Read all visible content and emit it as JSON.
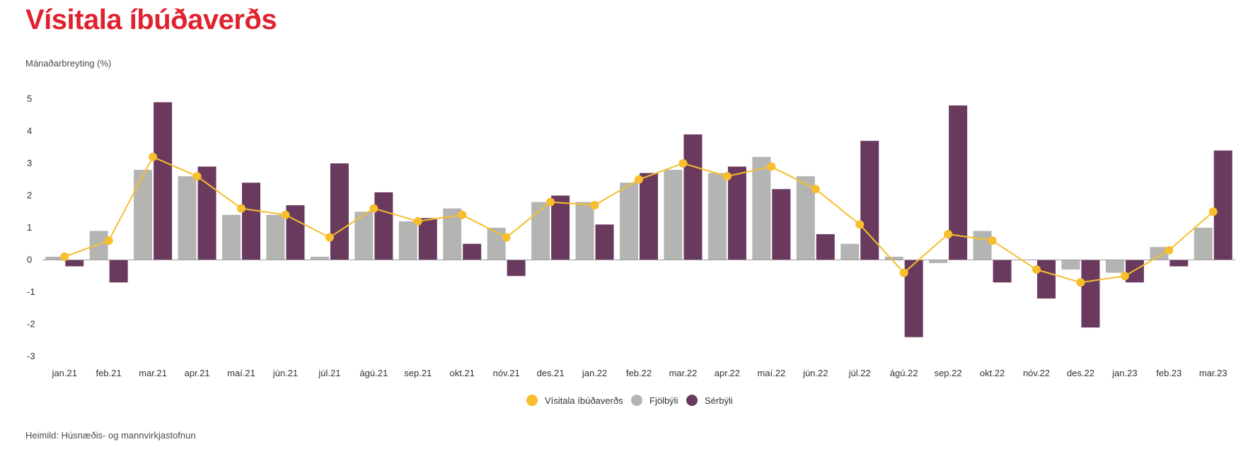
{
  "title": "Vísitala íbúðaverðs",
  "source": "Heimild: Húsnæðis- og mannvirkjastofnun",
  "colors": {
    "title": "#e0222f",
    "index": "#f7be2d",
    "apartments": "#b4b5b3",
    "houses": "#6a3a5e"
  },
  "chart_data": {
    "type": "bar",
    "title": "Vísitala íbúðaverðs",
    "ylabel": "Mánaðarbreyting (%)",
    "xlabel": "",
    "ylim": [
      -3,
      5
    ],
    "yticks": [
      5,
      4,
      3,
      2,
      1,
      0,
      -1,
      -2,
      -3
    ],
    "grid": false,
    "legend_position": "bottom-center",
    "categories": [
      "jan.21",
      "feb.21",
      "mar.21",
      "apr.21",
      "maí.21",
      "jún.21",
      "júl.21",
      "ágú.21",
      "sep.21",
      "okt.21",
      "nóv.21",
      "des.21",
      "jan.22",
      "feb.22",
      "mar.22",
      "apr.22",
      "maí.22",
      "jún.22",
      "júl.22",
      "ágú.22",
      "sep.22",
      "okt.22",
      "nóv.22",
      "des.22",
      "jan.23",
      "feb.23",
      "mar.23"
    ],
    "series": [
      {
        "name": "Vísitala íbúðaverðs",
        "kind": "line",
        "values": [
          0.1,
          0.6,
          3.2,
          2.6,
          1.6,
          1.4,
          0.7,
          1.6,
          1.2,
          1.4,
          0.7,
          1.8,
          1.7,
          2.5,
          3.0,
          2.6,
          2.9,
          2.2,
          1.1,
          -0.4,
          0.8,
          0.6,
          -0.3,
          -0.7,
          -0.5,
          0.3,
          1.5
        ]
      },
      {
        "name": "Fjölbýli",
        "kind": "bar",
        "values": [
          0.1,
          0.9,
          2.8,
          2.6,
          1.4,
          1.4,
          0.1,
          1.5,
          1.2,
          1.6,
          1.0,
          1.8,
          1.8,
          2.4,
          2.8,
          2.7,
          3.2,
          2.6,
          0.5,
          0.1,
          -0.1,
          0.9,
          0.0,
          -0.3,
          -0.4,
          0.4,
          1.0
        ]
      },
      {
        "name": "Sérbýli",
        "kind": "bar",
        "values": [
          -0.2,
          -0.7,
          4.9,
          2.9,
          2.4,
          1.7,
          3.0,
          2.1,
          1.3,
          0.5,
          -0.5,
          2.0,
          1.1,
          2.7,
          3.9,
          2.9,
          2.2,
          0.8,
          3.7,
          -2.4,
          4.8,
          -0.7,
          -1.2,
          -2.1,
          -0.7,
          -0.2,
          3.4
        ]
      }
    ]
  }
}
